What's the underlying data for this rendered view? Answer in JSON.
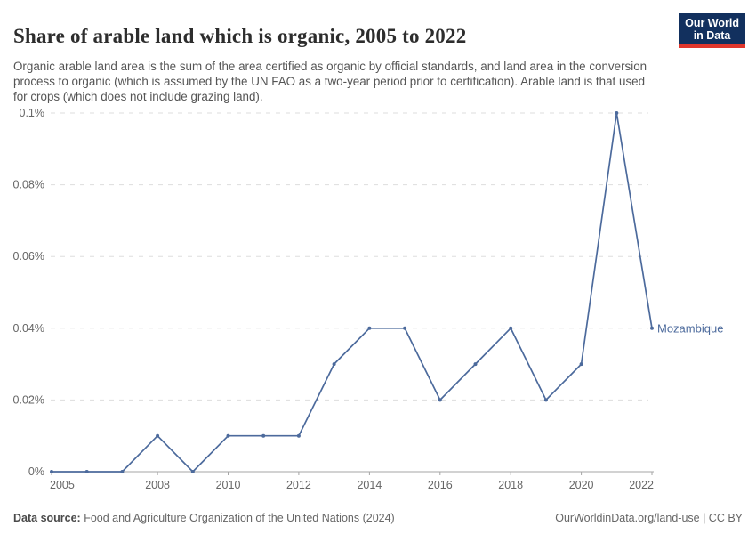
{
  "header": {
    "title": "Share of arable land which is organic, 2005 to 2022",
    "subtitle": "Organic arable land area is the sum of the area certified as organic by official standards, and land area in the conversion process to organic (which is assumed by the UN FAO as a two-year period prior to certification). Arable land is that used for crops (which does not include grazing land).",
    "logo": {
      "line1": "Our World",
      "line2": "in Data"
    }
  },
  "chart_data": {
    "type": "line",
    "title": "Share of arable land which is organic, 2005 to 2022",
    "x": [
      2005,
      2006,
      2007,
      2008,
      2009,
      2010,
      2011,
      2012,
      2013,
      2014,
      2015,
      2016,
      2017,
      2018,
      2019,
      2020,
      2021,
      2022
    ],
    "series": [
      {
        "name": "Mozambique",
        "color": "#4c6a9c",
        "values": [
          0,
          0,
          0,
          0.01,
          0,
          0.01,
          0.01,
          0.01,
          0.03,
          0.04,
          0.04,
          0.02,
          0.03,
          0.04,
          0.02,
          0.03,
          0.1,
          0.04
        ]
      }
    ],
    "xlabel": "",
    "ylabel": "",
    "unit": "%",
    "ylim": [
      0,
      0.1
    ],
    "yticks": [
      0,
      0.02,
      0.04,
      0.06,
      0.08,
      0.1
    ],
    "ytick_labels": [
      "0%",
      "0.02%",
      "0.04%",
      "0.06%",
      "0.08%",
      "0.1%"
    ],
    "xticks": [
      2005,
      2008,
      2010,
      2012,
      2014,
      2016,
      2018,
      2020,
      2022
    ],
    "grid": "horizontal-dashed",
    "legend_position": "end-of-line-label"
  },
  "footer": {
    "datasource_label": "Data source:",
    "datasource_text": " Food and Agriculture Organization of the United Nations (2024)",
    "credit": "OurWorldinData.org/land-use | CC BY"
  },
  "colors": {
    "line": "#4c6a9c",
    "grid": "#dddddd",
    "axis": "#a5a5a5",
    "tick_text": "#666666",
    "logo_bg": "#12305e",
    "logo_red": "#e0362c"
  }
}
